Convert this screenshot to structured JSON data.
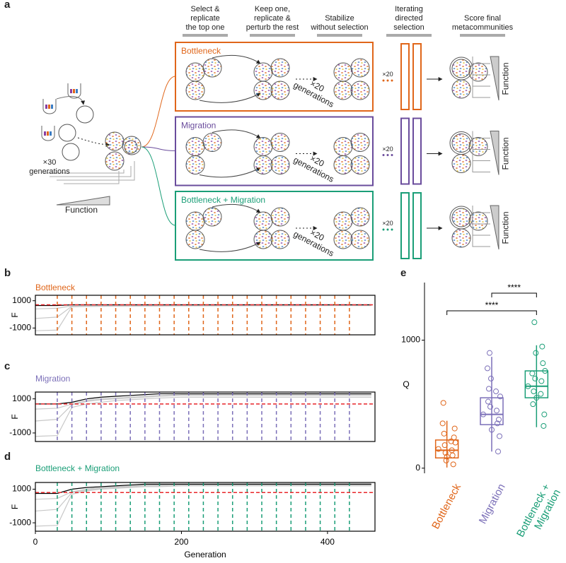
{
  "panel_labels": [
    "a",
    "b",
    "c",
    "d",
    "e"
  ],
  "diagram": {
    "steps": [
      "Select &\nreplicate\nthe top one",
      "Keep one,\nreplicate &\nperturb the rest",
      "Stabilize\nwithout selection",
      "Iterating\ndirected\nselection",
      "Score final\nmetacommunities"
    ],
    "founding": "×30\ngenerations",
    "function": "Function",
    "rows": [
      {
        "title": "Bottleneck",
        "color": "#e0661a",
        "generations": "×20\ngenerations",
        "repeat": "×20",
        "function": "Function"
      },
      {
        "title": "Migration",
        "color": "#6a4c9c",
        "generations": "×20\ngenerations",
        "repeat": "×20",
        "function": "Function"
      },
      {
        "title": "Bottleneck + Migration",
        "color": "#1a9e77",
        "generations": "×20\ngenerations",
        "repeat": "×20",
        "function": "Function"
      }
    ]
  },
  "chart_data": [
    {
      "type": "line",
      "title": "Bottleneck",
      "title_color": "#e0661a",
      "ylabel": "F",
      "x": [
        0,
        30,
        50,
        70,
        90,
        110,
        130,
        150,
        170,
        200,
        250,
        300,
        350,
        400,
        460
      ],
      "series": [
        {
          "color": "#c8c8c8",
          "values": [
            -1200,
            -1150,
            560,
            580,
            590,
            600,
            600,
            610,
            610,
            620,
            620,
            630,
            630,
            640,
            640
          ]
        },
        {
          "color": "#c8c8c8",
          "values": [
            -300,
            -200,
            600,
            620,
            630,
            640,
            640,
            650,
            650,
            660,
            660,
            660,
            670,
            670,
            670
          ]
        },
        {
          "color": "#c8c8c8",
          "values": [
            400,
            450,
            620,
            640,
            650,
            660,
            660,
            670,
            670,
            680,
            680,
            680,
            690,
            690,
            690
          ]
        },
        {
          "color": "#000000",
          "values": [
            650,
            650,
            700,
            700,
            700,
            700,
            700,
            700,
            700,
            700,
            700,
            700,
            700,
            700,
            700
          ]
        }
      ],
      "selection_x": [
        30,
        50,
        70,
        90,
        110,
        130,
        150,
        170,
        190,
        210,
        230,
        250,
        270,
        290,
        310,
        330,
        350,
        370,
        390,
        410,
        430
      ],
      "selection_color": "#e0661a",
      "reference_y": 700,
      "reference_color": "#e8262a",
      "xlim": [
        0,
        465
      ],
      "ylim": [
        -1500,
        1400
      ],
      "yticks": [
        -1000,
        1000
      ]
    },
    {
      "type": "line",
      "title": "Migration",
      "title_color": "#7b6fb8",
      "ylabel": "F",
      "x": [
        0,
        30,
        50,
        70,
        90,
        110,
        130,
        150,
        170,
        200,
        250,
        300,
        350,
        400,
        460
      ],
      "series": [
        {
          "color": "#c8c8c8",
          "values": [
            -1200,
            -1150,
            500,
            700,
            800,
            900,
            950,
            1000,
            1050,
            1100,
            1100,
            1100,
            1100,
            1100,
            1100
          ]
        },
        {
          "color": "#c8c8c8",
          "values": [
            -300,
            -200,
            650,
            850,
            950,
            1000,
            1050,
            1100,
            1150,
            1200,
            1200,
            1200,
            1200,
            1200,
            1200
          ]
        },
        {
          "color": "#c8c8c8",
          "values": [
            400,
            450,
            700,
            900,
            1000,
            1050,
            1100,
            1150,
            1200,
            1250,
            1250,
            1250,
            1250,
            1250,
            1250
          ]
        },
        {
          "color": "#000000",
          "values": [
            700,
            700,
            800,
            1000,
            1100,
            1150,
            1200,
            1250,
            1300,
            1300,
            1300,
            1300,
            1300,
            1300,
            1300
          ]
        }
      ],
      "selection_x": [
        30,
        50,
        70,
        90,
        110,
        130,
        150,
        170,
        190,
        210,
        230,
        250,
        270,
        290,
        310,
        330,
        350,
        370,
        390,
        410,
        430
      ],
      "selection_color": "#7b6fb8",
      "reference_y": 700,
      "reference_color": "#e8262a",
      "xlim": [
        0,
        465
      ],
      "ylim": [
        -1500,
        1400
      ],
      "yticks": [
        -1000,
        1000
      ]
    },
    {
      "type": "line",
      "title": "Bottleneck + Migration",
      "title_color": "#1a9e77",
      "ylabel": "F",
      "xlabel": "Generation",
      "x": [
        0,
        30,
        50,
        70,
        90,
        110,
        130,
        150,
        170,
        200,
        250,
        300,
        350,
        400,
        460
      ],
      "series": [
        {
          "color": "#c8c8c8",
          "values": [
            -1200,
            -1150,
            700,
            900,
            1000,
            1050,
            1100,
            1150,
            1150,
            1200,
            1200,
            1200,
            1200,
            1200,
            1200
          ]
        },
        {
          "color": "#c8c8c8",
          "values": [
            -300,
            -200,
            800,
            950,
            1050,
            1100,
            1150,
            1200,
            1200,
            1250,
            1250,
            1250,
            1250,
            1250,
            1250
          ]
        },
        {
          "color": "#c8c8c8",
          "values": [
            400,
            450,
            850,
            1000,
            1100,
            1150,
            1200,
            1250,
            1250,
            1280,
            1280,
            1280,
            1280,
            1280,
            1280
          ]
        },
        {
          "color": "#000000",
          "values": [
            750,
            750,
            1000,
            1100,
            1150,
            1200,
            1250,
            1300,
            1300,
            1300,
            1300,
            1300,
            1300,
            1300,
            1300
          ]
        }
      ],
      "selection_x": [
        30,
        50,
        70,
        90,
        110,
        130,
        150,
        170,
        190,
        210,
        230,
        250,
        270,
        290,
        310,
        330,
        350,
        370,
        390,
        410,
        430
      ],
      "selection_color": "#1a9e77",
      "reference_y": 800,
      "reference_color": "#e8262a",
      "xlim": [
        0,
        465
      ],
      "ylim": [
        -1500,
        1400
      ],
      "yticks": [
        -1000,
        1000
      ],
      "xticks": [
        0,
        200,
        400
      ]
    },
    {
      "type": "box",
      "ylabel": "Q",
      "categories": [
        "Bottleneck",
        "Migration",
        "Bottleneck +\nMigration"
      ],
      "boxes": [
        {
          "color": "#e0661a",
          "min": 5,
          "q1": 80,
          "median": 140,
          "q3": 220,
          "max": 370
        },
        {
          "color": "#7b6fb8",
          "min": 130,
          "q1": 340,
          "median": 420,
          "q3": 550,
          "max": 870
        },
        {
          "color": "#1a9e77",
          "min": 320,
          "q1": 550,
          "median": 640,
          "q3": 760,
          "max": 960
        }
      ],
      "points": [
        [
          150,
          90,
          200,
          60,
          310,
          120,
          240,
          180,
          30,
          270,
          100,
          510,
          140,
          350,
          210
        ],
        [
          420,
          300,
          560,
          700,
          250,
          480,
          380,
          900,
          130,
          620,
          350,
          520,
          450,
          780,
          600
        ],
        [
          640,
          550,
          760,
          900,
          420,
          700,
          330,
          1140,
          820,
          600,
          950,
          500,
          680,
          740,
          580
        ]
      ],
      "significance": [
        {
          "groups": [
            "Migration",
            "Bottleneck +\nMigration"
          ],
          "label": "****"
        },
        {
          "groups": [
            "Bottleneck",
            "Bottleneck +\nMigration"
          ],
          "label": "****"
        }
      ],
      "ylim": [
        -40,
        1450
      ],
      "yticks": [
        0,
        1000
      ]
    }
  ]
}
